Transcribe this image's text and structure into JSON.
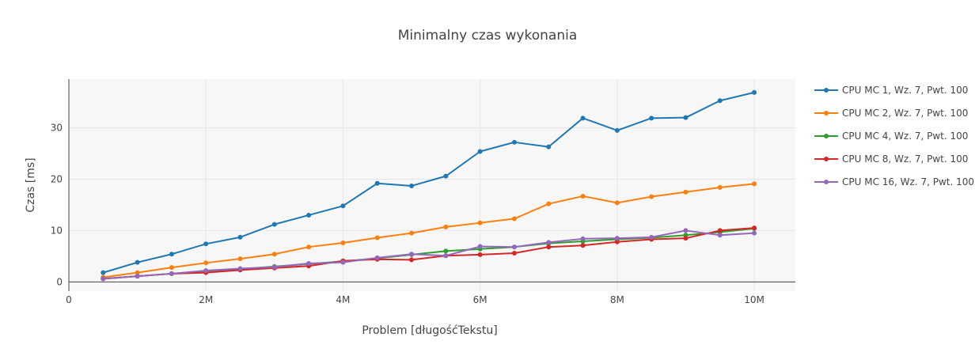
{
  "chart_data": {
    "type": "line",
    "title": "Minimalny czas wykonania",
    "xlabel": "Problem [długośćTekstu]",
    "ylabel": "Czas [ms]",
    "xlim": [
      0,
      10600000
    ],
    "ylim": [
      -1.8,
      39.5
    ],
    "x_ticks": [
      0,
      2000000,
      4000000,
      6000000,
      8000000,
      10000000
    ],
    "x_tick_labels": [
      "0",
      "2M",
      "4M",
      "6M",
      "8M",
      "10M"
    ],
    "y_ticks": [
      0,
      10,
      20,
      30
    ],
    "y_tick_labels": [
      "0",
      "10",
      "20",
      "30"
    ],
    "grid": true,
    "legend_position": "right",
    "x": [
      500000,
      1000000,
      1500000,
      2000000,
      2500000,
      3000000,
      3500000,
      4000000,
      4500000,
      5000000,
      5500000,
      6000000,
      6500000,
      7000000,
      7500000,
      8000000,
      8500000,
      9000000,
      9500000,
      10000000
    ],
    "series": [
      {
        "name": "CPU MC 1, Wz. 7, Pwt. 100",
        "color": "#1f77b4",
        "values": [
          1.8,
          3.8,
          5.4,
          7.4,
          8.7,
          11.2,
          13.0,
          14.8,
          19.2,
          18.7,
          20.6,
          25.4,
          27.2,
          26.3,
          31.9,
          29.5,
          31.9,
          32.0,
          35.3,
          36.9
        ]
      },
      {
        "name": "CPU MC 2, Wz. 7, Pwt. 100",
        "color": "#ff7f0e",
        "values": [
          0.9,
          1.8,
          2.8,
          3.7,
          4.5,
          5.4,
          6.8,
          7.6,
          8.6,
          9.5,
          10.7,
          11.5,
          12.3,
          15.2,
          16.7,
          15.4,
          16.6,
          17.5,
          18.4,
          19.1
        ]
      },
      {
        "name": "CPU MC 4, Wz. 7, Pwt. 100",
        "color": "#2ca02c",
        "values": [
          0.6,
          1.1,
          1.6,
          2.1,
          2.5,
          3.0,
          3.5,
          4.0,
          4.6,
          5.3,
          6.0,
          6.4,
          6.8,
          7.5,
          7.9,
          8.3,
          8.6,
          9.1,
          9.7,
          10.4
        ]
      },
      {
        "name": "CPU MC 8, Wz. 7, Pwt. 100",
        "color": "#d62728",
        "values": [
          0.6,
          1.1,
          1.6,
          1.8,
          2.3,
          2.7,
          3.1,
          4.1,
          4.4,
          4.3,
          5.1,
          5.3,
          5.6,
          6.8,
          7.1,
          7.8,
          8.3,
          8.5,
          10.0,
          10.5
        ]
      },
      {
        "name": "CPU MC 16, Wz. 7, Pwt. 100",
        "color": "#9467bd",
        "values": [
          0.6,
          1.1,
          1.6,
          2.2,
          2.6,
          2.9,
          3.6,
          3.8,
          4.7,
          5.4,
          5.1,
          6.9,
          6.8,
          7.7,
          8.4,
          8.5,
          8.7,
          10.0,
          9.1,
          9.5
        ]
      }
    ]
  }
}
